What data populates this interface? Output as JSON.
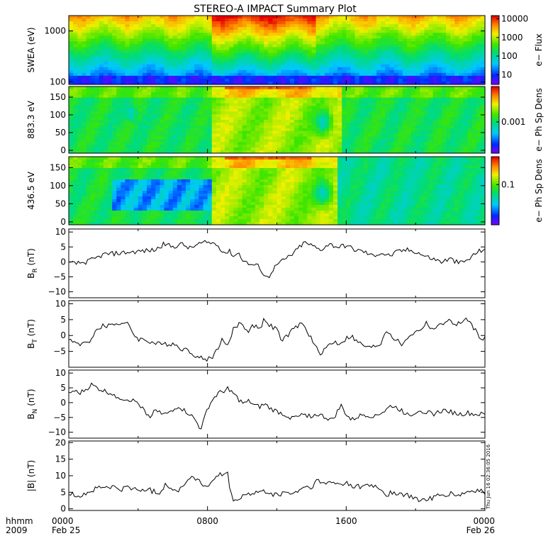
{
  "chart_data": {
    "type": "multi-panel",
    "title": "STEREO-A IMPACT Summary Plot",
    "x_axis": {
      "label_line1": "hhmm",
      "label_line2": "2009",
      "range_hours": [
        0,
        24
      ],
      "ticks": [
        {
          "hour": 0,
          "label": "0000",
          "sublabel": "Feb 25"
        },
        {
          "hour": 8,
          "label": "0800",
          "sublabel": ""
        },
        {
          "hour": 16,
          "label": "1600",
          "sublabel": ""
        },
        {
          "hour": 24,
          "label": "0000",
          "sublabel": "Feb 26"
        }
      ]
    },
    "timestamp_note": "Thu Jun 16 02:36:05 2016",
    "panels": [
      {
        "type": "heatmap",
        "ylabel": "SWEA (eV)",
        "yscale": "log",
        "ylim": [
          90,
          2000
        ],
        "yticks": [
          {
            "v": 100,
            "label": "100"
          },
          {
            "v": 1000,
            "label": "1000"
          }
        ],
        "colorbar": {
          "label": "e− Flux",
          "scale": "log",
          "range": [
            3,
            15000
          ],
          "ticks": [
            {
              "v": 10,
              "label": "10"
            },
            {
              "v": 100,
              "label": "100"
            },
            {
              "v": 1000,
              "label": "1000"
            },
            {
              "v": 10000,
              "label": "10000"
            }
          ]
        }
      },
      {
        "type": "heatmap",
        "ylabel": "883.3 eV",
        "ylim": [
          -8,
          180
        ],
        "yticks": [
          {
            "v": 0,
            "label": "0"
          },
          {
            "v": 50,
            "label": "50"
          },
          {
            "v": 100,
            "label": "100"
          },
          {
            "v": 150,
            "label": "150"
          }
        ],
        "colorbar": {
          "label": "e− Ph Sp Dens",
          "scale": "log",
          "range": [
            5e-05,
            0.03
          ],
          "ticks": [
            {
              "v": 0.001,
              "label": "0.001"
            }
          ]
        }
      },
      {
        "type": "heatmap",
        "ylabel": "436.5 eV",
        "ylim": [
          -8,
          180
        ],
        "yticks": [
          {
            "v": 0,
            "label": "0"
          },
          {
            "v": 50,
            "label": "50"
          },
          {
            "v": 100,
            "label": "100"
          },
          {
            "v": 150,
            "label": "150"
          }
        ],
        "colorbar": {
          "label": "e− Ph Sp Dens",
          "scale": "log",
          "range": [
            0.005,
            0.8
          ],
          "ticks": [
            {
              "v": 0.1,
              "label": "0.1"
            }
          ]
        }
      },
      {
        "type": "line",
        "ylabel_main": "B",
        "ylabel_sub": "R",
        "ylabel_unit": "(nT)",
        "ylim": [
          -12,
          11
        ],
        "yticks": [
          {
            "v": -10,
            "label": "−10"
          },
          {
            "v": -5,
            "label": "−5"
          },
          {
            "v": 0,
            "label": "0"
          },
          {
            "v": 5,
            "label": "5"
          },
          {
            "v": 10,
            "label": "10"
          }
        ],
        "keypoints": [
          [
            0,
            -0.5
          ],
          [
            0.5,
            -0.5
          ],
          [
            1,
            0
          ],
          [
            1.5,
            1
          ],
          [
            2,
            2.5
          ],
          [
            3,
            3
          ],
          [
            4,
            3.5
          ],
          [
            5,
            4
          ],
          [
            5.5,
            6
          ],
          [
            6,
            5
          ],
          [
            6.5,
            6
          ],
          [
            7,
            4.5
          ],
          [
            7.5,
            6
          ],
          [
            8,
            6.5
          ],
          [
            8.5,
            6
          ],
          [
            9,
            3
          ],
          [
            9.3,
            3.5
          ],
          [
            9.5,
            2
          ],
          [
            9.8,
            3
          ],
          [
            10,
            1
          ],
          [
            10.3,
            -0.5
          ],
          [
            10.6,
            -1
          ],
          [
            11,
            -1.5
          ],
          [
            11.2,
            -4
          ],
          [
            11.5,
            -5.5
          ],
          [
            11.7,
            -3
          ],
          [
            12,
            -1
          ],
          [
            12.5,
            1
          ],
          [
            13,
            3
          ],
          [
            13.3,
            5
          ],
          [
            13.6,
            6.5
          ],
          [
            14,
            5.5
          ],
          [
            14.5,
            4
          ],
          [
            15,
            6
          ],
          [
            15.5,
            5
          ],
          [
            16,
            5.5
          ],
          [
            16.5,
            4
          ],
          [
            17,
            3.5
          ],
          [
            17.5,
            2
          ],
          [
            18,
            3
          ],
          [
            18.5,
            2
          ],
          [
            19,
            3.5
          ],
          [
            19.5,
            4
          ],
          [
            20,
            3.5
          ],
          [
            20.5,
            2
          ],
          [
            21,
            1
          ],
          [
            21.5,
            0
          ],
          [
            22,
            1
          ],
          [
            22.5,
            -0.5
          ],
          [
            23,
            0.5
          ],
          [
            23.5,
            3
          ],
          [
            24,
            4.5
          ]
        ]
      },
      {
        "type": "line",
        "ylabel_main": "B",
        "ylabel_sub": "T",
        "ylabel_unit": "(nT)",
        "ylim": [
          -10,
          11
        ],
        "yticks": [
          {
            "v": -5,
            "label": "−5"
          },
          {
            "v": 0,
            "label": "0"
          },
          {
            "v": 5,
            "label": "5"
          },
          {
            "v": 10,
            "label": "10"
          }
        ],
        "keypoints": [
          [
            0,
            -1
          ],
          [
            0.3,
            -2
          ],
          [
            0.6,
            -3
          ],
          [
            1,
            -2.5
          ],
          [
            1.3,
            -1
          ],
          [
            1.5,
            1
          ],
          [
            1.8,
            2.5
          ],
          [
            2,
            3
          ],
          [
            2.5,
            3.5
          ],
          [
            3,
            4
          ],
          [
            3.4,
            3.5
          ],
          [
            3.6,
            2
          ],
          [
            3.8,
            0
          ],
          [
            4,
            -1
          ],
          [
            4.5,
            -1.5
          ],
          [
            5,
            -2.5
          ],
          [
            5.5,
            -3
          ],
          [
            6,
            -2.5
          ],
          [
            6.5,
            -4
          ],
          [
            7,
            -5
          ],
          [
            7.5,
            -7
          ],
          [
            8,
            -7.5
          ],
          [
            8.3,
            -6.5
          ],
          [
            8.6,
            -4
          ],
          [
            8.8,
            -1
          ],
          [
            9,
            -3
          ],
          [
            9.3,
            -1.5
          ],
          [
            9.5,
            2
          ],
          [
            9.8,
            3.5
          ],
          [
            10,
            4
          ],
          [
            10.3,
            1
          ],
          [
            10.6,
            3.5
          ],
          [
            11,
            2
          ],
          [
            11.3,
            5.5
          ],
          [
            11.6,
            3
          ],
          [
            12,
            2
          ],
          [
            12.3,
            -2
          ],
          [
            12.6,
            0
          ],
          [
            13,
            2
          ],
          [
            13.4,
            4
          ],
          [
            13.8,
            1
          ],
          [
            14.2,
            -3.5
          ],
          [
            14.5,
            -5.5
          ],
          [
            15,
            -3
          ],
          [
            15.3,
            -2
          ],
          [
            15.6,
            -2.5
          ],
          [
            16,
            -1
          ],
          [
            16.3,
            0
          ],
          [
            16.6,
            -2
          ],
          [
            17,
            -3
          ],
          [
            17.3,
            -4
          ],
          [
            17.6,
            -3.5
          ],
          [
            18,
            -2.5
          ],
          [
            18.3,
            2
          ],
          [
            18.6,
            0
          ],
          [
            19,
            -2
          ],
          [
            19.3,
            -3
          ],
          [
            19.6,
            0
          ],
          [
            20,
            1
          ],
          [
            20.3,
            2
          ],
          [
            20.6,
            4
          ],
          [
            21,
            2
          ],
          [
            21.4,
            3
          ],
          [
            21.8,
            5
          ],
          [
            22.2,
            3.5
          ],
          [
            22.6,
            4
          ],
          [
            23,
            5
          ],
          [
            23.3,
            3
          ],
          [
            23.6,
            0
          ],
          [
            24,
            -1
          ]
        ]
      },
      {
        "type": "line",
        "ylabel_main": "B",
        "ylabel_sub": "N",
        "ylabel_unit": "(nT)",
        "ylim": [
          -12,
          11
        ],
        "yticks": [
          {
            "v": -10,
            "label": "−10"
          },
          {
            "v": -5,
            "label": "−5"
          },
          {
            "v": 0,
            "label": "0"
          },
          {
            "v": 5,
            "label": "5"
          },
          {
            "v": 10,
            "label": "10"
          }
        ],
        "keypoints": [
          [
            0,
            3
          ],
          [
            0.3,
            4
          ],
          [
            0.6,
            3
          ],
          [
            1,
            4.5
          ],
          [
            1.3,
            6
          ],
          [
            1.6,
            5
          ],
          [
            2,
            4
          ],
          [
            2.5,
            3
          ],
          [
            3,
            1.5
          ],
          [
            3.5,
            1
          ],
          [
            4,
            0
          ],
          [
            4.3,
            -2
          ],
          [
            4.5,
            -5
          ],
          [
            4.8,
            -4
          ],
          [
            5,
            -2
          ],
          [
            5.3,
            -3
          ],
          [
            5.6,
            -4
          ],
          [
            6,
            -3
          ],
          [
            6.3,
            -1
          ],
          [
            6.6,
            -2.5
          ],
          [
            7,
            -4
          ],
          [
            7.3,
            -6
          ],
          [
            7.6,
            -9
          ],
          [
            7.8,
            -6
          ],
          [
            8,
            -2
          ],
          [
            8.3,
            1
          ],
          [
            8.6,
            3
          ],
          [
            9,
            4
          ],
          [
            9.2,
            5
          ],
          [
            9.5,
            3
          ],
          [
            9.8,
            1
          ],
          [
            10.1,
            -0.5
          ],
          [
            10.4,
            0.5
          ],
          [
            10.7,
            -1
          ],
          [
            11,
            -1.5
          ],
          [
            11.3,
            -0.5
          ],
          [
            11.6,
            -2
          ],
          [
            12,
            -3
          ],
          [
            12.4,
            -4
          ],
          [
            12.8,
            -5
          ],
          [
            13.2,
            -5
          ],
          [
            13.6,
            -4
          ],
          [
            14,
            -4.5
          ],
          [
            14.4,
            -4
          ],
          [
            14.8,
            -5
          ],
          [
            15.2,
            -6
          ],
          [
            15.5,
            -3
          ],
          [
            15.7,
            -1
          ],
          [
            16,
            -4
          ],
          [
            16.3,
            -6
          ],
          [
            16.6,
            -5
          ],
          [
            17,
            -4
          ],
          [
            17.4,
            -4.5
          ],
          [
            17.8,
            -4
          ],
          [
            18.2,
            -3
          ],
          [
            18.6,
            -1
          ],
          [
            19,
            -2
          ],
          [
            19.4,
            -3.5
          ],
          [
            19.8,
            -4
          ],
          [
            20.2,
            -2.5
          ],
          [
            20.6,
            -3
          ],
          [
            21,
            -4
          ],
          [
            21.4,
            -3
          ],
          [
            21.8,
            -2.5
          ],
          [
            22.2,
            -3.5
          ],
          [
            22.6,
            -4
          ],
          [
            23,
            -3.5
          ],
          [
            23.4,
            -4
          ],
          [
            24,
            -4
          ]
        ]
      },
      {
        "type": "line",
        "ylabel_main": "|B|",
        "ylabel_sub": "",
        "ylabel_unit": "(nT)",
        "ylim": [
          -0.5,
          20.5
        ],
        "yticks": [
          {
            "v": 0,
            "label": "0"
          },
          {
            "v": 5,
            "label": "5"
          },
          {
            "v": 10,
            "label": "10"
          },
          {
            "v": 15,
            "label": "15"
          },
          {
            "v": 20,
            "label": "20"
          }
        ],
        "keypoints": [
          [
            0,
            4.5
          ],
          [
            0.5,
            4
          ],
          [
            1,
            4.5
          ],
          [
            1.5,
            6
          ],
          [
            2,
            6.5
          ],
          [
            2.5,
            6.5
          ],
          [
            3,
            6
          ],
          [
            3.5,
            6.5
          ],
          [
            4,
            5.5
          ],
          [
            4.5,
            6
          ],
          [
            5,
            5
          ],
          [
            5.3,
            5
          ],
          [
            5.6,
            8
          ],
          [
            5.9,
            6
          ],
          [
            6.2,
            5
          ],
          [
            6.5,
            7
          ],
          [
            6.8,
            8
          ],
          [
            7.1,
            10
          ],
          [
            7.4,
            9
          ],
          [
            7.7,
            7
          ],
          [
            8,
            7
          ],
          [
            8.3,
            8
          ],
          [
            8.6,
            10
          ],
          [
            9,
            10.5
          ],
          [
            9.2,
            11
          ],
          [
            9.3,
            4.5
          ],
          [
            9.6,
            2
          ],
          [
            10,
            4
          ],
          [
            10.5,
            4.5
          ],
          [
            11,
            5
          ],
          [
            11.5,
            5
          ],
          [
            12,
            4
          ],
          [
            12.5,
            5
          ],
          [
            13,
            4.5
          ],
          [
            13.5,
            6.5
          ],
          [
            14,
            6.5
          ],
          [
            14.3,
            8.5
          ],
          [
            14.6,
            7.5
          ],
          [
            15,
            8
          ],
          [
            15.5,
            7.5
          ],
          [
            16,
            8
          ],
          [
            16.5,
            6.5
          ],
          [
            17,
            7
          ],
          [
            17.5,
            7
          ],
          [
            18,
            6
          ],
          [
            18.3,
            4
          ],
          [
            18.6,
            5
          ],
          [
            19,
            4.5
          ],
          [
            19.5,
            4
          ],
          [
            20,
            3
          ],
          [
            20.5,
            2.5
          ],
          [
            21,
            3.5
          ],
          [
            21.5,
            4
          ],
          [
            22,
            4.5
          ],
          [
            22.5,
            4
          ],
          [
            23,
            5
          ],
          [
            23.5,
            5.5
          ],
          [
            24,
            5
          ]
        ]
      }
    ]
  }
}
